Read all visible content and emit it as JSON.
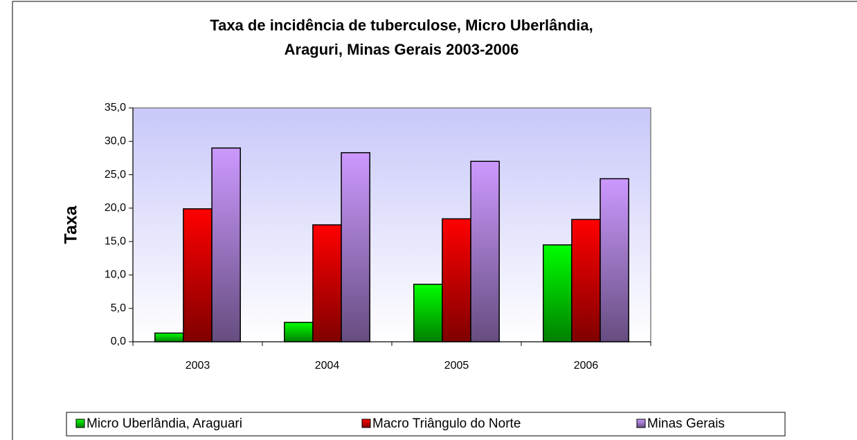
{
  "chart_data": {
    "type": "bar",
    "title": [
      "Taxa de incidência de tuberculose, Micro Uberlândia,",
      "Araguri, Minas Gerais 2003-2006"
    ],
    "y_label": "Taxa",
    "categories": [
      "2003",
      "2004",
      "2005",
      "2006"
    ],
    "series": [
      {
        "name": "Micro Uberlândia, Araguari",
        "color": "#00ff00",
        "values": [
          1.3,
          2.9,
          8.6,
          14.5
        ]
      },
      {
        "name": "Macro Triângulo do Norte",
        "color": "#ff0000",
        "values": [
          19.9,
          17.5,
          18.4,
          18.3
        ]
      },
      {
        "name": "Minas Gerais",
        "color": "#cc99ff",
        "values": [
          29.0,
          28.3,
          27.0,
          24.4
        ]
      }
    ],
    "ylim": [
      0,
      35
    ],
    "yticks": [
      {
        "value": 0,
        "label": "0,0"
      },
      {
        "value": 5,
        "label": "5,0"
      },
      {
        "value": 10,
        "label": "10,0"
      },
      {
        "value": 15,
        "label": "15,0"
      },
      {
        "value": 20,
        "label": "20,0"
      },
      {
        "value": 25,
        "label": "25,0"
      },
      {
        "value": 30,
        "label": "30,0"
      },
      {
        "value": 35,
        "label": "35,0"
      }
    ],
    "legend": "bottom"
  }
}
